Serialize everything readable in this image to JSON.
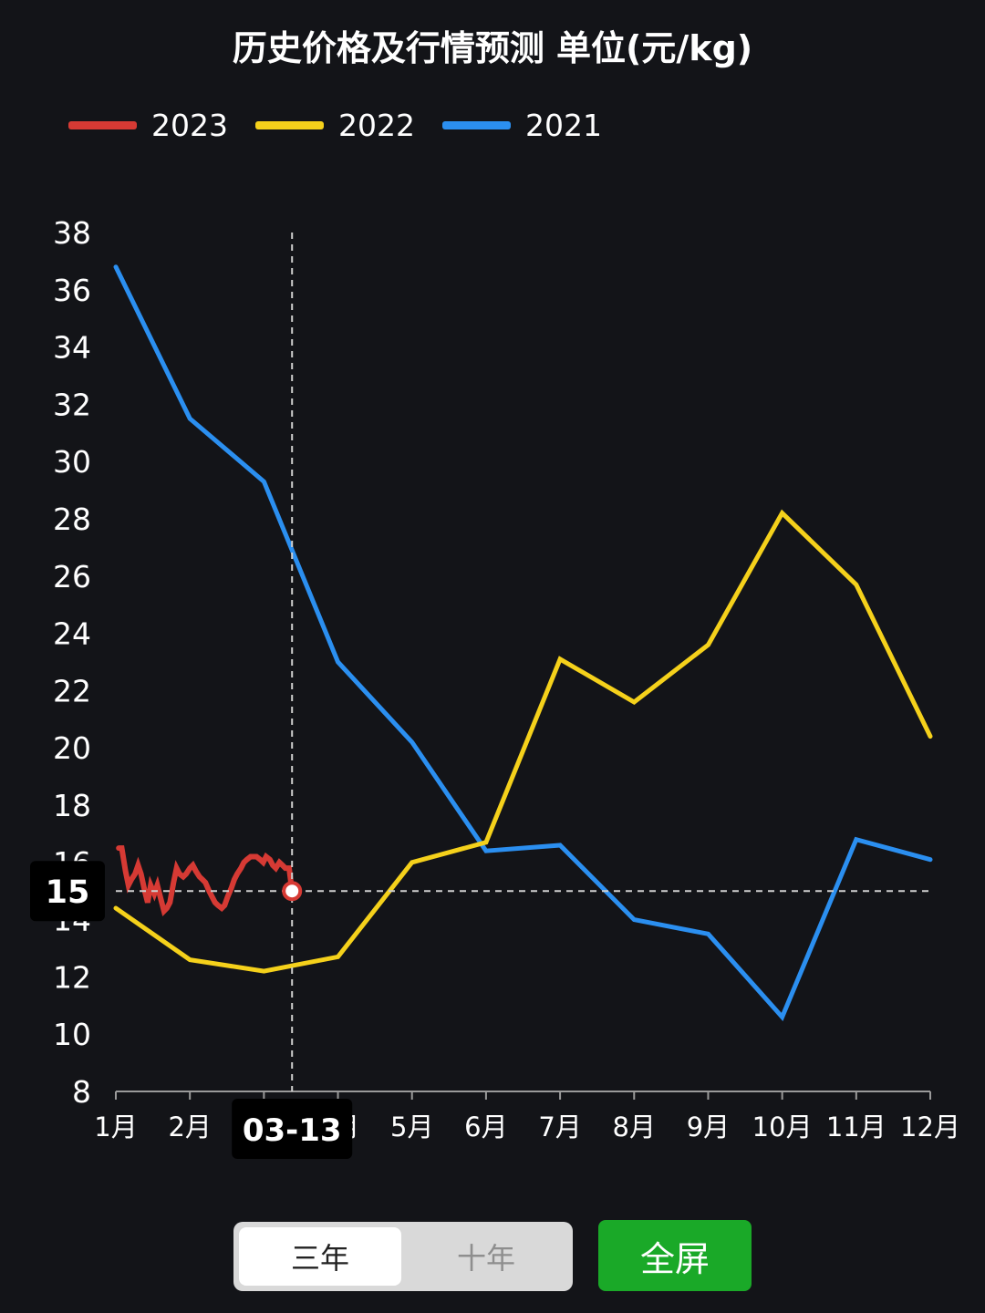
{
  "title": "历史价格及行情预测  单位(元/kg)",
  "legend": [
    {
      "label": "2023",
      "color": "#d63a34"
    },
    {
      "label": "2022",
      "color": "#f5d11b"
    },
    {
      "label": "2021",
      "color": "#2b8ff0"
    }
  ],
  "crosshair": {
    "x_label": "03-13",
    "y_label": "15"
  },
  "controls": {
    "three_year": "三年",
    "ten_year": "十年",
    "fullscreen": "全屏"
  },
  "chart_data": {
    "type": "line",
    "title": "历史价格及行情预测  单位(元/kg)",
    "xlabel": "",
    "ylabel": "",
    "ylim": [
      8,
      38
    ],
    "yticks": [
      8,
      10,
      12,
      14,
      16,
      18,
      20,
      22,
      24,
      26,
      28,
      30,
      32,
      34,
      36,
      38
    ],
    "categories": [
      "1月",
      "2月",
      "3月",
      "4月",
      "5月",
      "6月",
      "7月",
      "8月",
      "9月",
      "10月",
      "11月",
      "12月"
    ],
    "grid": false,
    "legend_position": "top-left",
    "series": [
      {
        "name": "2021",
        "color": "#2b8ff0",
        "x": [
          1,
          2,
          3,
          4,
          5,
          6,
          7,
          8,
          9,
          10,
          11,
          12
        ],
        "values": [
          36.8,
          31.5,
          29.3,
          23.0,
          20.2,
          16.4,
          16.6,
          14.0,
          13.5,
          10.6,
          16.8,
          16.1
        ]
      },
      {
        "name": "2022",
        "color": "#f5d11b",
        "x": [
          1,
          2,
          3,
          4,
          5,
          6,
          7,
          8,
          9,
          10,
          11,
          12
        ],
        "values": [
          14.4,
          12.6,
          12.2,
          12.7,
          16.0,
          16.7,
          23.1,
          21.6,
          23.6,
          28.2,
          25.7,
          20.4
        ]
      },
      {
        "name": "2023",
        "color": "#d63a34",
        "x": [
          1.04,
          1.08,
          1.13,
          1.17,
          1.21,
          1.26,
          1.3,
          1.34,
          1.39,
          1.43,
          1.47,
          1.52,
          1.56,
          1.6,
          1.65,
          1.69,
          1.73,
          1.78,
          1.82,
          1.86,
          1.91,
          1.95,
          2.0,
          2.04,
          2.08,
          2.13,
          2.17,
          2.21,
          2.26,
          2.3,
          2.34,
          2.38,
          2.43,
          2.47,
          2.51,
          2.56,
          2.6,
          2.64,
          2.69,
          2.73,
          2.77,
          2.82,
          2.86,
          2.9,
          2.95,
          2.99,
          3.03,
          3.08,
          3.12,
          3.16,
          3.21,
          3.25,
          3.29,
          3.34,
          3.38
        ],
        "values": [
          16.5,
          16.5,
          15.7,
          15.2,
          15.4,
          15.6,
          15.9,
          15.6,
          15.0,
          14.6,
          15.2,
          14.9,
          15.2,
          14.8,
          14.3,
          14.4,
          14.6,
          15.3,
          15.8,
          15.6,
          15.5,
          15.6,
          15.8,
          15.9,
          15.7,
          15.5,
          15.4,
          15.3,
          15.0,
          14.8,
          14.6,
          14.5,
          14.4,
          14.5,
          14.8,
          15.1,
          15.4,
          15.6,
          15.8,
          16.0,
          16.1,
          16.2,
          16.2,
          16.2,
          16.1,
          16.0,
          16.2,
          16.1,
          15.9,
          15.8,
          16.0,
          15.9,
          15.8,
          15.8,
          15.0
        ]
      }
    ]
  }
}
